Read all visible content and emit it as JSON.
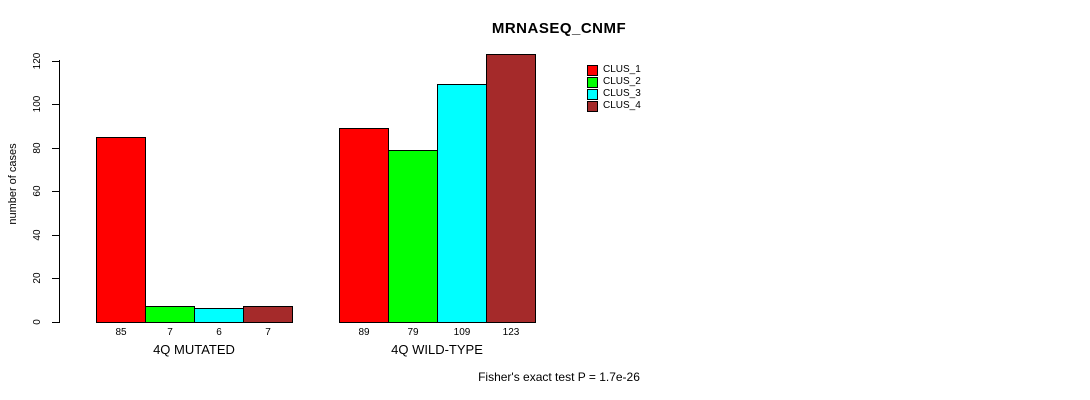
{
  "chart_data": {
    "type": "bar",
    "title": "MRNASEQ_CNMF",
    "ylabel": "number of cases",
    "xlabel": "",
    "categories": [
      "4Q MUTATED",
      "4Q WILD-TYPE"
    ],
    "series": [
      {
        "name": "CLUS_1",
        "color": "#FF0000",
        "values": [
          85,
          89
        ]
      },
      {
        "name": "CLUS_2",
        "color": "#00FF00",
        "values": [
          7,
          79
        ]
      },
      {
        "name": "CLUS_3",
        "color": "#00FFFF",
        "values": [
          6,
          109
        ]
      },
      {
        "name": "CLUS_4",
        "color": "#A52A2A",
        "values": [
          7,
          123
        ]
      }
    ],
    "yticks": [
      0,
      20,
      40,
      60,
      80,
      100,
      120
    ],
    "ylim": [
      0,
      130
    ],
    "grid": false,
    "legend_position": "top-right",
    "bar_value_labels": [
      [
        85,
        7,
        6,
        7
      ],
      [
        89,
        79,
        109,
        123
      ]
    ],
    "annotation": "Fisher's exact test P = 1.7e-26"
  },
  "legend": {
    "entries": [
      {
        "label": "CLUS_1",
        "color": "#FF0000"
      },
      {
        "label": "CLUS_2",
        "color": "#00FF00"
      },
      {
        "label": "CLUS_3",
        "color": "#00FFFF"
      },
      {
        "label": "CLUS_4",
        "color": "#A52A2A"
      }
    ]
  }
}
